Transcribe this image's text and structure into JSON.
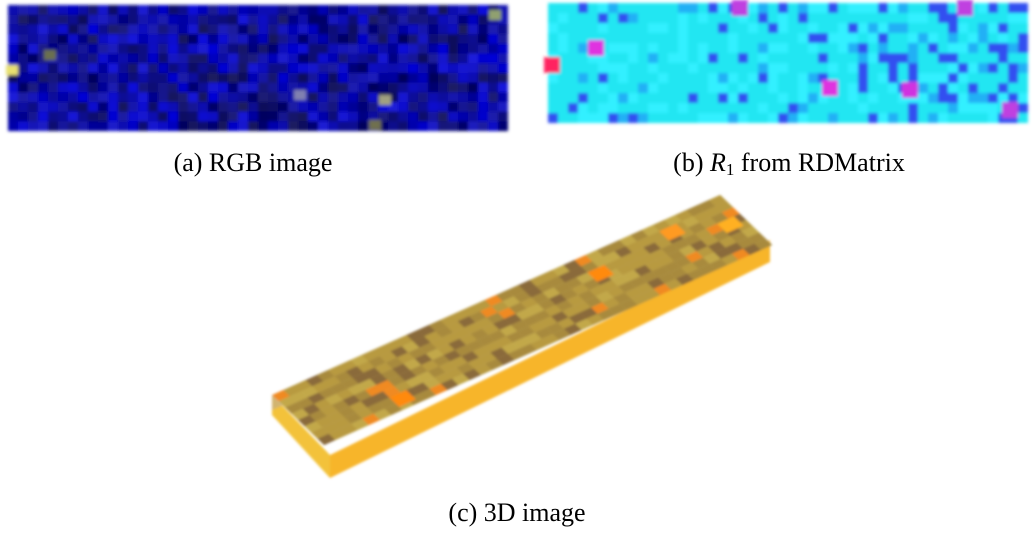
{
  "figure": {
    "subfigures": [
      {
        "label": "(a)",
        "caption": "RGB image"
      },
      {
        "label": "(b)",
        "math": "R",
        "subscript": "1",
        "caption": "from RDMatrix"
      },
      {
        "label": "(c)",
        "caption": "3D image"
      }
    ]
  }
}
